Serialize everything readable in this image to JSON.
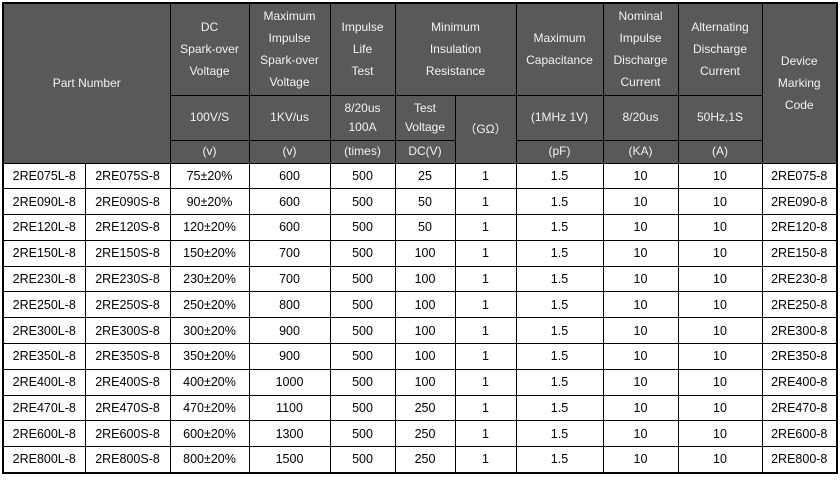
{
  "colors": {
    "header_bg": "#595959",
    "header_text": "#f2f2f2",
    "border": "#000000",
    "body_bg": "#ffffff",
    "body_text": "#000000"
  },
  "table": {
    "header": {
      "part_number": "Part Number",
      "device_marking_lines": [
        "Device",
        "Marking",
        "Code"
      ],
      "groups": [
        {
          "title_lines": [
            "DC",
            "Spark-over",
            "Voltage"
          ],
          "condition": "100V/S",
          "unit": "(v)"
        },
        {
          "title_lines": [
            "Maximum",
            "Impulse",
            "Spark-over",
            "Voltage"
          ],
          "condition": "1KV/us",
          "unit": "(v)"
        },
        {
          "title_lines": [
            "Impulse",
            "Life",
            "Test"
          ],
          "condition_lines": [
            "8/20us",
            "100A"
          ],
          "unit": "(times)"
        },
        {
          "title_lines": [
            "Minimum",
            "Insulation",
            "Resistance"
          ],
          "sub_a_lines": [
            "Test",
            "Voltage"
          ],
          "sub_a_unit": "DC(V)",
          "sub_b": "（GΩ）"
        },
        {
          "title_lines": [
            "Maximum",
            "Capacitance"
          ],
          "condition": "(1MHz 1V)",
          "unit": "(pF)"
        },
        {
          "title_lines": [
            "Nominal",
            "Impulse",
            "Discharge",
            "Current"
          ],
          "condition": "8/20us",
          "unit": "(KA)"
        },
        {
          "title_lines": [
            "Alternating",
            "Discharge",
            "Current"
          ],
          "condition": "50Hz,1S",
          "unit": "(A)"
        }
      ]
    },
    "column_keys": [
      "part-number-l-cell",
      "part-number-s-cell",
      "dc-sparkover-voltage-cell",
      "max-impulse-sparkover-cell",
      "impulse-life-test-cell",
      "test-voltage-cell",
      "insulation-resistance-cell",
      "capacitance-cell",
      "impulse-discharge-current-cell",
      "alternating-discharge-current-cell",
      "marking-code-cell"
    ],
    "rows": [
      [
        "2RE075L-8",
        "2RE075S-8",
        "75±20%",
        "600",
        "500",
        "25",
        "1",
        "1.5",
        "10",
        "10",
        "2RE075-8"
      ],
      [
        "2RE090L-8",
        "2RE090S-8",
        "90±20%",
        "600",
        "500",
        "50",
        "1",
        "1.5",
        "10",
        "10",
        "2RE090-8"
      ],
      [
        "2RE120L-8",
        "2RE120S-8",
        "120±20%",
        "600",
        "500",
        "50",
        "1",
        "1.5",
        "10",
        "10",
        "2RE120-8"
      ],
      [
        "2RE150L-8",
        "2RE150S-8",
        "150±20%",
        "700",
        "500",
        "100",
        "1",
        "1.5",
        "10",
        "10",
        "2RE150-8"
      ],
      [
        "2RE230L-8",
        "2RE230S-8",
        "230±20%",
        "700",
        "500",
        "100",
        "1",
        "1.5",
        "10",
        "10",
        "2RE230-8"
      ],
      [
        "2RE250L-8",
        "2RE250S-8",
        "250±20%",
        "800",
        "500",
        "100",
        "1",
        "1.5",
        "10",
        "10",
        "2RE250-8"
      ],
      [
        "2RE300L-8",
        "2RE300S-8",
        "300±20%",
        "900",
        "500",
        "100",
        "1",
        "1.5",
        "10",
        "10",
        "2RE300-8"
      ],
      [
        "2RE350L-8",
        "2RE350S-8",
        "350±20%",
        "900",
        "500",
        "100",
        "1",
        "1.5",
        "10",
        "10",
        "2RE350-8"
      ],
      [
        "2RE400L-8",
        "2RE400S-8",
        "400±20%",
        "1000",
        "500",
        "100",
        "1",
        "1.5",
        "10",
        "10",
        "2RE400-8"
      ],
      [
        "2RE470L-8",
        "2RE470S-8",
        "470±20%",
        "1100",
        "500",
        "250",
        "1",
        "1.5",
        "10",
        "10",
        "2RE470-8"
      ],
      [
        "2RE600L-8",
        "2RE600S-8",
        "600±20%",
        "1300",
        "500",
        "250",
        "1",
        "1.5",
        "10",
        "10",
        "2RE600-8"
      ],
      [
        "2RE800L-8",
        "2RE800S-8",
        "800±20%",
        "1500",
        "500",
        "250",
        "1",
        "1.5",
        "10",
        "10",
        "2RE800-8"
      ]
    ]
  }
}
